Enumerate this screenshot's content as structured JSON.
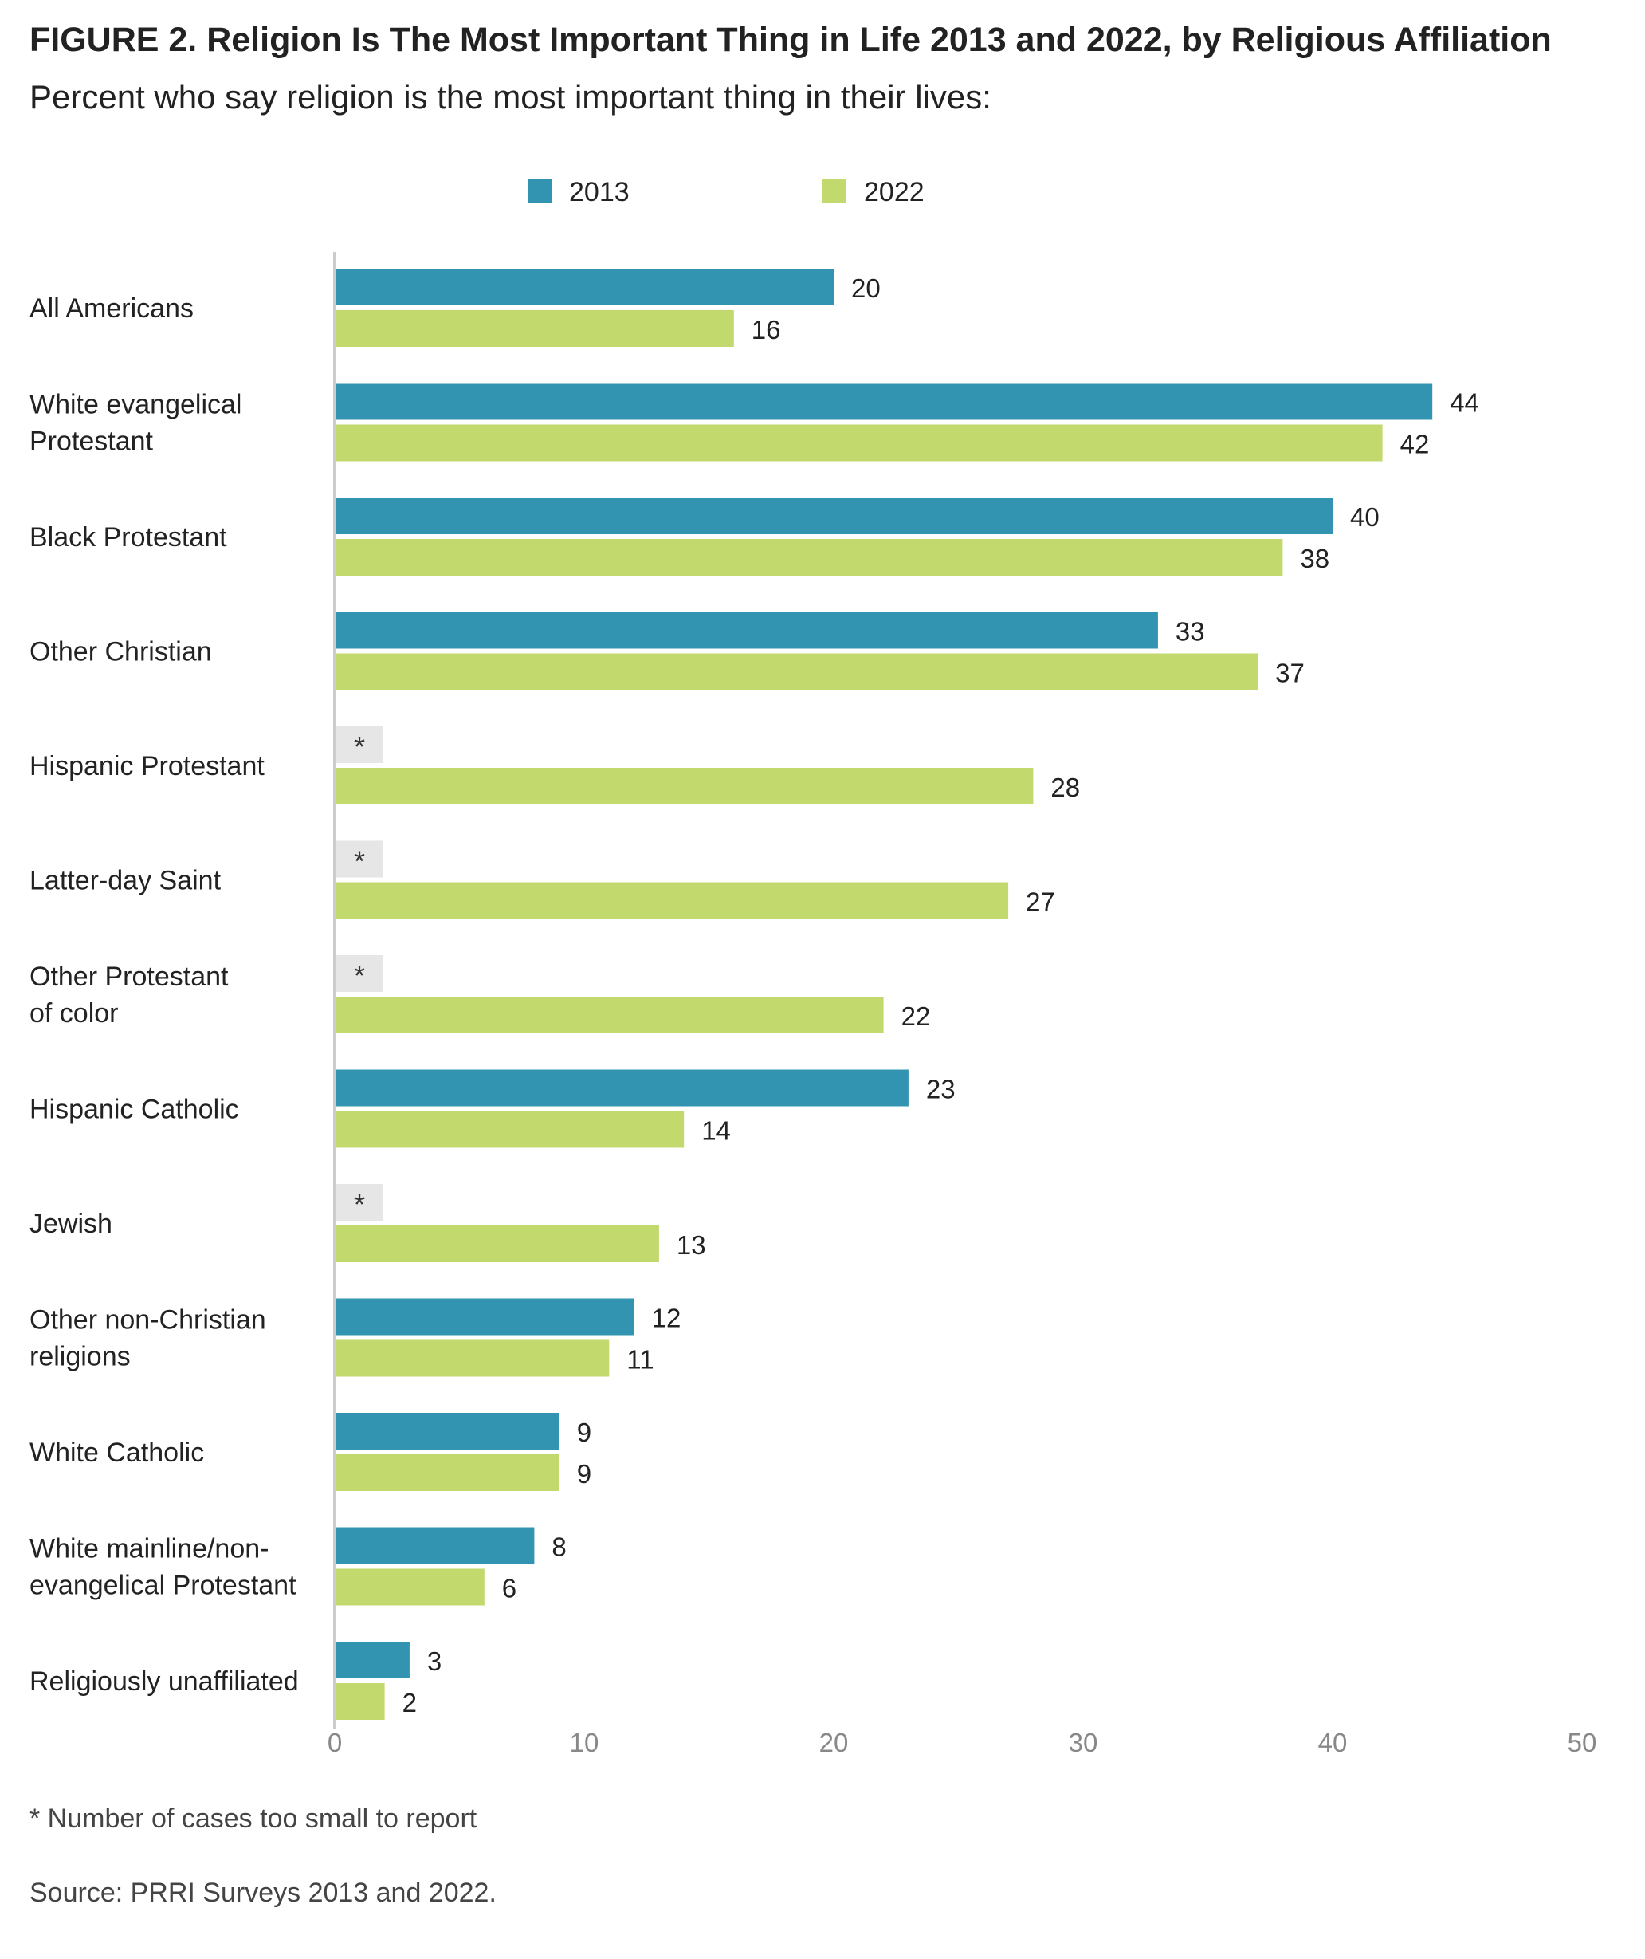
{
  "title": "FIGURE 2.  Religion Is The Most Important Thing in Life 2013 and 2022, by Religious Affiliation",
  "subtitle": "Percent who say religion is the most important thing in their lives:",
  "footnote": "* Number of cases too small to report",
  "source": "Source: PRRI Surveys 2013 and 2022.",
  "colors": {
    "series_2013": "#3394b1",
    "series_2022": "#c2d96e",
    "suppressed": "#e6e6e6",
    "axis": "#cccccc",
    "tick_label": "#888888"
  },
  "chart_data": {
    "type": "bar",
    "orientation": "horizontal",
    "title": "FIGURE 2.  Religion Is The Most Important Thing in Life 2013 and 2022, by Religious Affiliation",
    "subtitle": "Percent who say religion is the most important thing in their lives:",
    "legend_position": "top",
    "grid": false,
    "xlim": [
      0,
      50
    ],
    "x_ticks": [
      "0",
      "10",
      "20",
      "30",
      "40",
      "50"
    ],
    "suppressed_marker": "*",
    "categories": [
      [
        "All Americans"
      ],
      [
        "White evangelical",
        "Protestant"
      ],
      [
        "Black Protestant"
      ],
      [
        "Other Christian"
      ],
      [
        "Hispanic Protestant"
      ],
      [
        "Latter-day Saint"
      ],
      [
        "Other Protestant",
        "of color"
      ],
      [
        "Hispanic Catholic"
      ],
      [
        "Jewish"
      ],
      [
        "Other non-Christian",
        "religions"
      ],
      [
        "White Catholic"
      ],
      [
        "White mainline/non-",
        "evangelical Protestant"
      ],
      [
        "Religiously unaffiliated"
      ]
    ],
    "series": [
      {
        "name": "2013",
        "values": [
          20,
          44,
          40,
          33,
          null,
          null,
          null,
          23,
          null,
          12,
          9,
          8,
          3
        ]
      },
      {
        "name": "2022",
        "values": [
          16,
          42,
          38,
          37,
          28,
          27,
          22,
          14,
          13,
          11,
          9,
          6,
          2
        ]
      }
    ]
  }
}
